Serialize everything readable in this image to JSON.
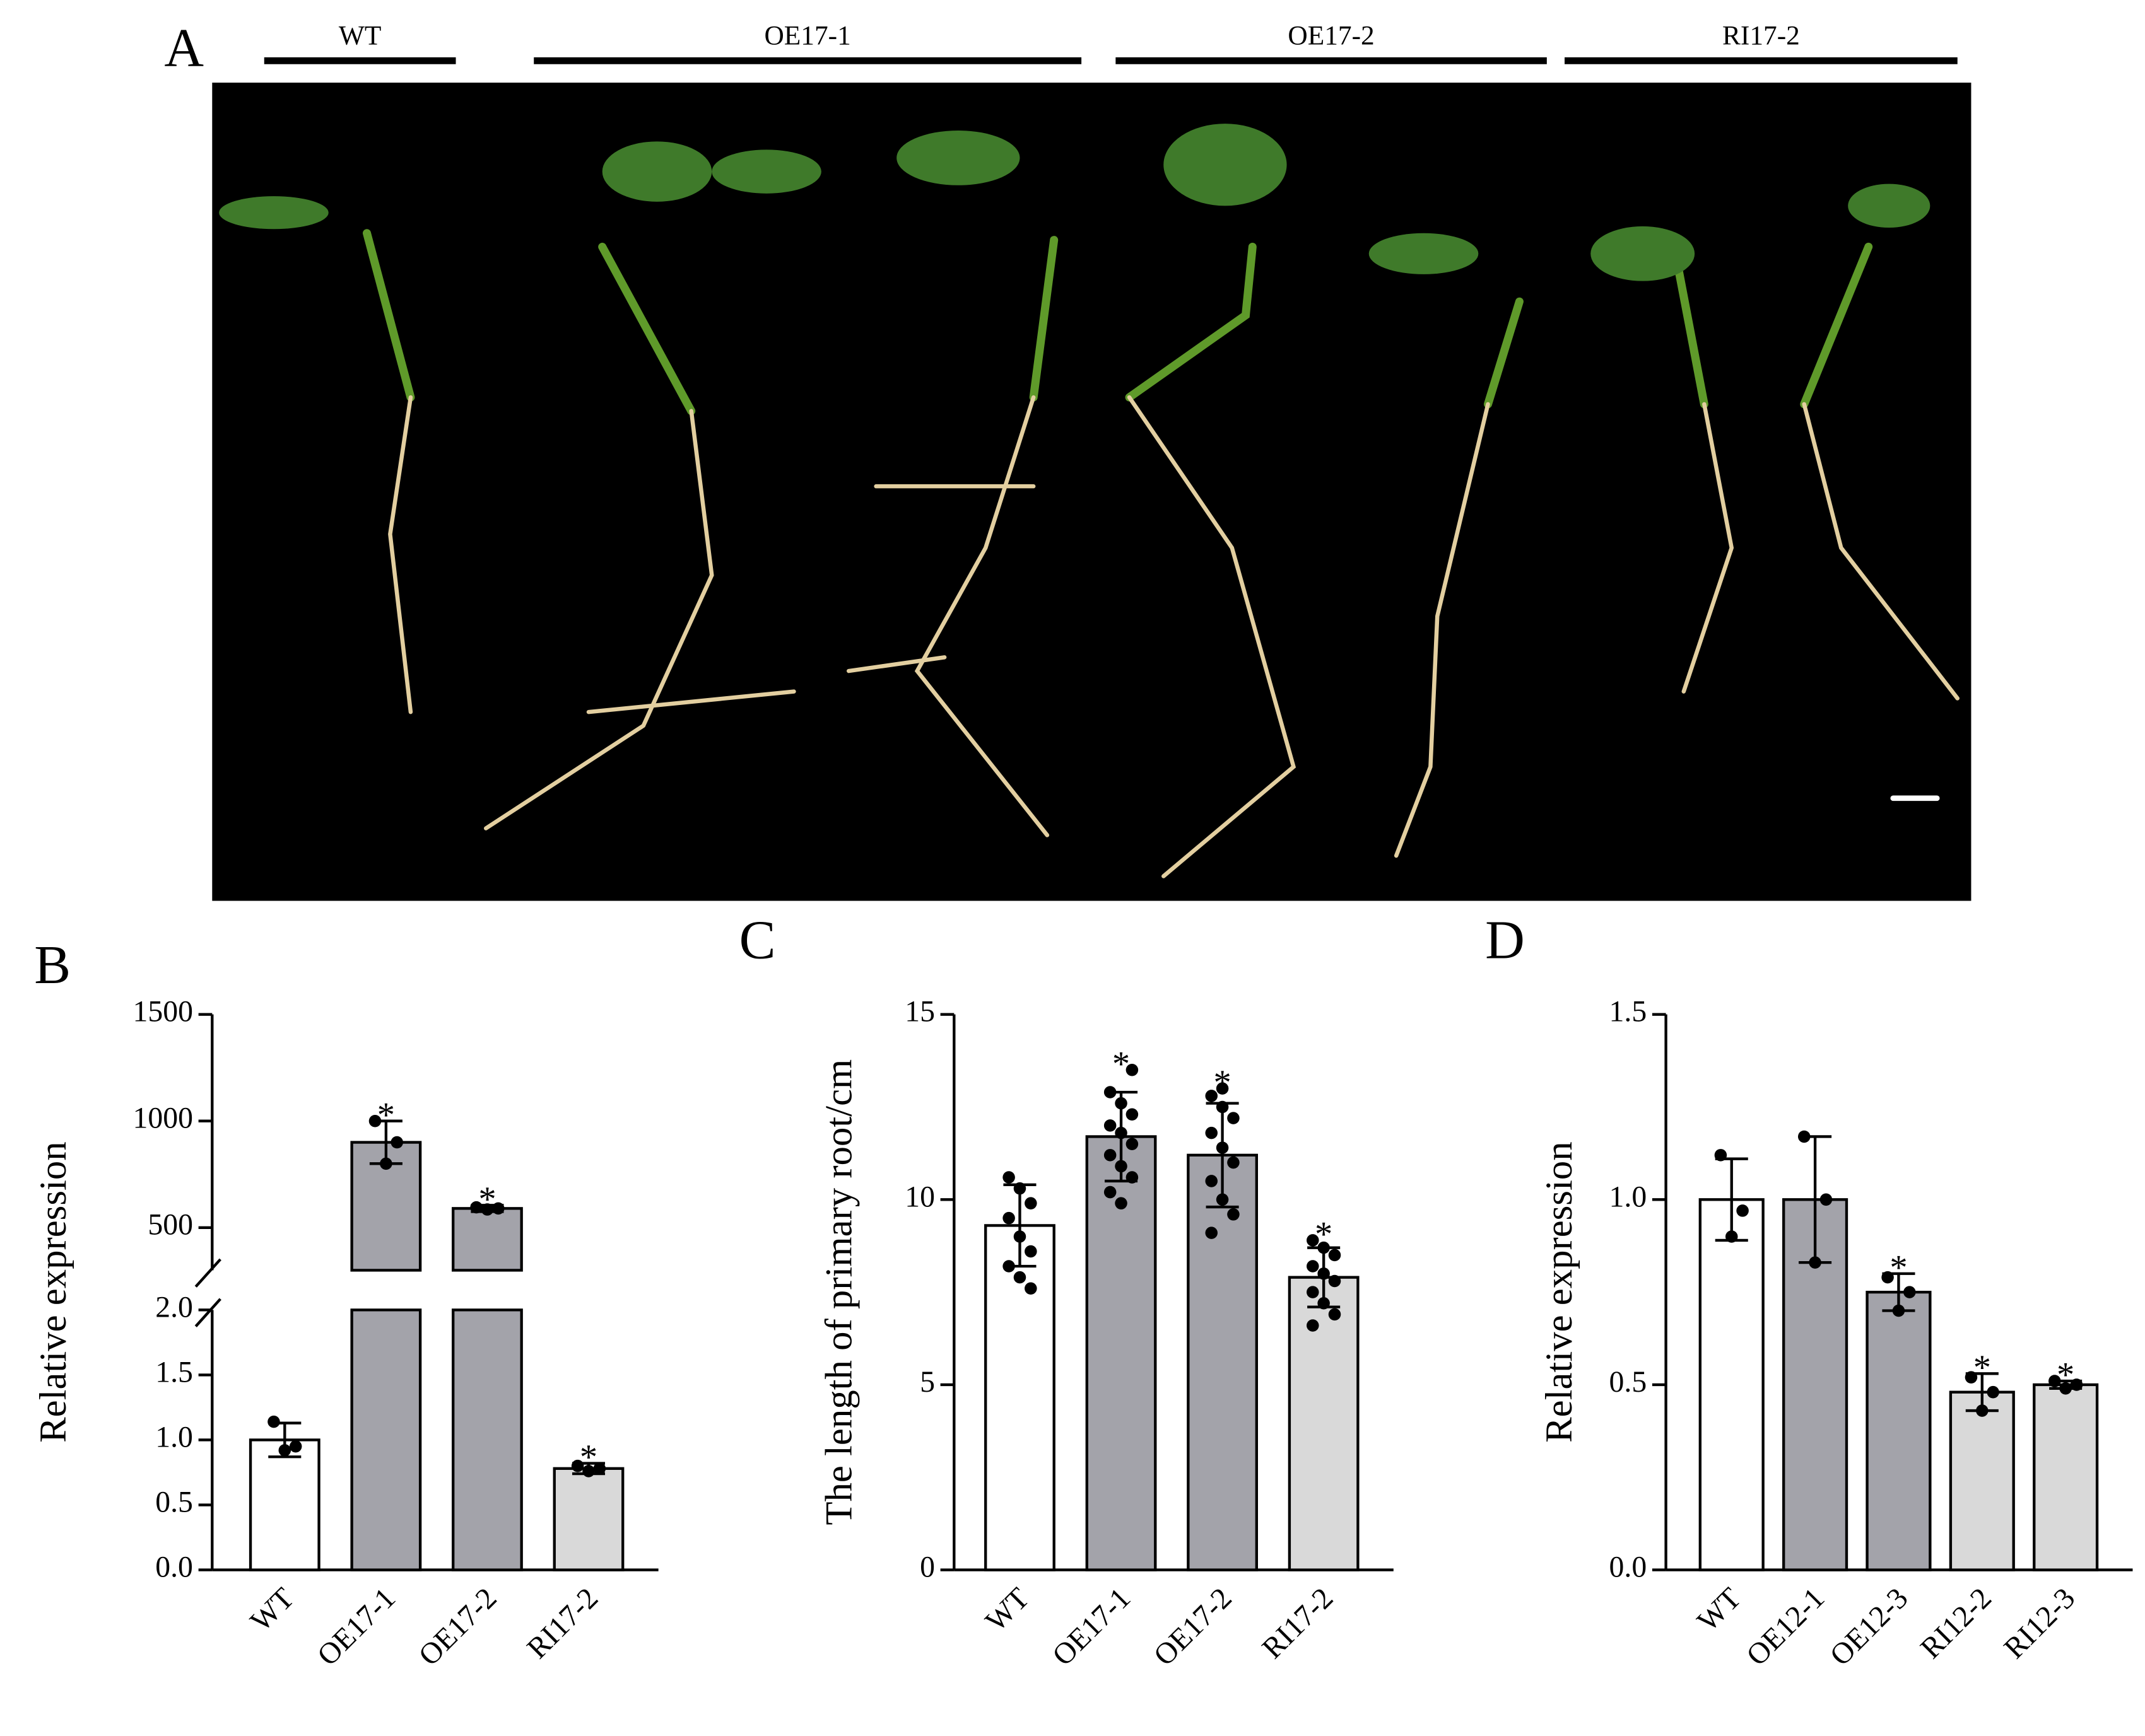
{
  "panel_a": {
    "label": "A",
    "groups": [
      "WT",
      "OE17-1",
      "OE17-2",
      "RI17-2"
    ]
  },
  "chart_data": [
    {
      "type": "bar",
      "panel": "B",
      "ylabel": "Relative expression",
      "categories": [
        "WT",
        "OE17-1",
        "OE17-2",
        "RI17-2"
      ],
      "values": [
        1.0,
        900,
        590,
        0.78
      ],
      "errors": [
        0.13,
        100,
        15,
        0.04
      ],
      "points": [
        [
          1.14,
          0.92,
          0.95
        ],
        [
          1000,
          800,
          900
        ],
        [
          595,
          585,
          590
        ],
        [
          0.8,
          0.76,
          0.78
        ]
      ],
      "colors": [
        "#ffffff",
        "#a3a3aa",
        "#a3a3aa",
        "#d9d9d9"
      ],
      "annotations": [
        {
          "index": 1,
          "text": "*"
        },
        {
          "index": 2,
          "text": "*"
        },
        {
          "index": 3,
          "text": "*"
        }
      ],
      "ylim": [
        0,
        2
      ],
      "yticks": [
        {
          "value": 0,
          "label": "0.0"
        },
        0.5,
        {
          "value": 1,
          "label": "1.0"
        },
        1.5,
        {
          "value": 2,
          "label": "2.0"
        }
      ],
      "ylim_upper": [
        300,
        1500
      ],
      "yticks_upper": [
        500,
        1000,
        1500
      ],
      "axis_break": true
    },
    {
      "type": "bar",
      "panel": "C",
      "ylabel": "The length of primary root/cm",
      "categories": [
        "WT",
        "OE17-1",
        "OE17-2",
        "RI17-2"
      ],
      "values": [
        9.3,
        11.7,
        11.2,
        7.9
      ],
      "errors": [
        1.1,
        1.2,
        1.4,
        0.8
      ],
      "points": [
        [
          10.6,
          10.3,
          9.9,
          9.5,
          9.0,
          8.6,
          8.2,
          7.9,
          7.6
        ],
        [
          12.9,
          12.6,
          12.3,
          12.0,
          11.8,
          11.5,
          11.2,
          10.9,
          10.6,
          10.2,
          9.9,
          13.5
        ],
        [
          12.8,
          12.5,
          12.2,
          11.8,
          11.4,
          11.0,
          10.5,
          10.0,
          9.6,
          9.1,
          13.0
        ],
        [
          8.9,
          8.7,
          8.5,
          8.2,
          8.0,
          7.8,
          7.5,
          7.2,
          6.9,
          6.6
        ]
      ],
      "colors": [
        "#ffffff",
        "#a3a3aa",
        "#a3a3aa",
        "#d9d9d9"
      ],
      "annotations": [
        {
          "index": 1,
          "text": "*"
        },
        {
          "index": 2,
          "text": "*"
        },
        {
          "index": 3,
          "text": "*"
        }
      ],
      "ylim": [
        0,
        15
      ],
      "yticks": [
        0,
        5,
        10,
        15
      ]
    },
    {
      "type": "bar",
      "panel": "D",
      "ylabel": "Relative expression",
      "categories": [
        "WT",
        "OE12-1",
        "OE12-3",
        "RI12-2",
        "RI12-3"
      ],
      "values": [
        1.0,
        1.0,
        0.75,
        0.48,
        0.5
      ],
      "errors": [
        0.11,
        0.17,
        0.05,
        0.05,
        0.01
      ],
      "points": [
        [
          1.12,
          0.9,
          0.97
        ],
        [
          1.17,
          0.83,
          1.0
        ],
        [
          0.79,
          0.7,
          0.75
        ],
        [
          0.52,
          0.43,
          0.48
        ],
        [
          0.51,
          0.49,
          0.5
        ]
      ],
      "colors": [
        "#ffffff",
        "#a3a3aa",
        "#a3a3aa",
        "#d9d9d9",
        "#d9d9d9"
      ],
      "annotations": [
        {
          "index": 2,
          "text": "*"
        },
        {
          "index": 3,
          "text": "*"
        },
        {
          "index": 4,
          "text": "*"
        }
      ],
      "ylim": [
        0,
        1.5
      ],
      "yticks": [
        {
          "value": 0,
          "label": "0.0"
        },
        0.5,
        {
          "value": 1,
          "label": "1.0"
        },
        1.5
      ]
    }
  ]
}
